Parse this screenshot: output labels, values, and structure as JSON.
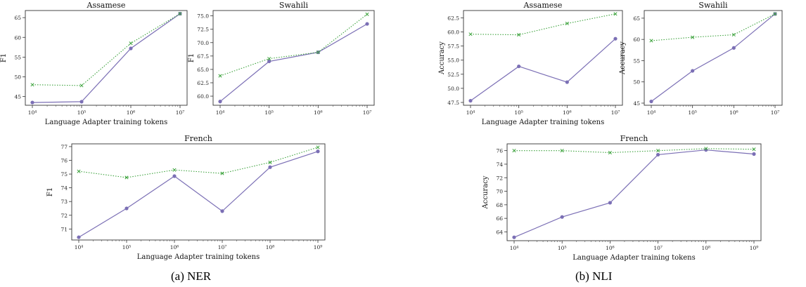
{
  "captions": {
    "a": "(a)  NER",
    "b": "(b)  NLI"
  },
  "colors": {
    "solid": "#7b6fb5",
    "dotted": "#3ea33e"
  },
  "chart_data": [
    {
      "id": "ner-assamese",
      "type": "line",
      "scale_x": "log",
      "title": "Assamese",
      "xlabel": "Language Adapter training tokens",
      "ylabel": "F1",
      "x": [
        10000,
        100000,
        1000000,
        10000000
      ],
      "xticks": [
        10000,
        100000,
        1000000,
        10000000
      ],
      "xtick_labels": [
        "10⁴",
        "10⁵",
        "10⁶",
        "10⁷"
      ],
      "yticks": [
        45,
        50,
        55,
        60,
        65
      ],
      "ylim": [
        42.8,
        66.8
      ],
      "series": [
        {
          "style": "solid",
          "values": [
            43.5,
            43.7,
            57.2,
            66.0
          ]
        },
        {
          "style": "dotted",
          "values": [
            48.0,
            47.8,
            58.5,
            66.0
          ]
        }
      ]
    },
    {
      "id": "ner-swahili",
      "type": "line",
      "scale_x": "log",
      "title": "Swahili",
      "xlabel": "",
      "ylabel": "F1",
      "x": [
        10000,
        100000,
        1000000,
        10000000
      ],
      "xticks": [
        10000,
        100000,
        1000000,
        10000000
      ],
      "xtick_labels": [
        "10⁴",
        "10⁵",
        "10⁶",
        "10⁷"
      ],
      "yticks": [
        60.0,
        62.5,
        65.0,
        67.5,
        70.0,
        72.5,
        75.0
      ],
      "ytick_labels": [
        "60.0",
        "62.5",
        "65.0",
        "67.5",
        "70.0",
        "72.5",
        "75.0"
      ],
      "ylim": [
        58.3,
        76.0
      ],
      "series": [
        {
          "style": "solid",
          "values": [
            59.0,
            66.5,
            68.2,
            73.5
          ]
        },
        {
          "style": "dotted",
          "values": [
            63.8,
            67.0,
            68.2,
            75.3
          ]
        }
      ]
    },
    {
      "id": "ner-french",
      "type": "line",
      "scale_x": "log",
      "title": "French",
      "xlabel": "Language Adapter training tokens",
      "ylabel": "F1",
      "x": [
        10000,
        100000,
        1000000,
        10000000,
        100000000,
        1000000000
      ],
      "xticks": [
        10000,
        100000,
        1000000,
        10000000,
        100000000,
        1000000000
      ],
      "xtick_labels": [
        "10⁴",
        "10⁵",
        "10⁶",
        "10⁷",
        "10⁸",
        "10⁹"
      ],
      "yticks": [
        71,
        72,
        73,
        74,
        75,
        76,
        77
      ],
      "ylim": [
        70.2,
        77.2
      ],
      "series": [
        {
          "style": "solid",
          "values": [
            70.4,
            72.5,
            74.85,
            72.3,
            75.5,
            76.65
          ]
        },
        {
          "style": "dotted",
          "values": [
            75.2,
            74.75,
            75.3,
            75.05,
            75.85,
            76.95
          ]
        }
      ]
    },
    {
      "id": "nli-assamese",
      "type": "line",
      "scale_x": "log",
      "title": "Assamese",
      "xlabel": "Language Adapter training tokens",
      "ylabel": "Accuracy",
      "x": [
        10000,
        100000,
        1000000,
        10000000
      ],
      "xticks": [
        10000,
        100000,
        1000000,
        10000000
      ],
      "xtick_labels": [
        "10⁴",
        "10⁵",
        "10⁶",
        "10⁷"
      ],
      "yticks": [
        47.5,
        50.0,
        52.5,
        55.0,
        57.5,
        60.0,
        62.5
      ],
      "ytick_labels": [
        "47.5",
        "50.0",
        "52.5",
        "55.0",
        "57.5",
        "60.0",
        "62.5"
      ],
      "ylim": [
        47.0,
        63.8
      ],
      "series": [
        {
          "style": "solid",
          "values": [
            47.8,
            53.9,
            51.1,
            58.8
          ]
        },
        {
          "style": "dotted",
          "values": [
            59.6,
            59.5,
            61.5,
            63.2
          ]
        }
      ]
    },
    {
      "id": "nli-swahili",
      "type": "line",
      "scale_x": "log",
      "title": "Swahili",
      "xlabel": "",
      "ylabel": "Accuracy",
      "x": [
        10000,
        100000,
        1000000,
        10000000
      ],
      "xticks": [
        10000,
        100000,
        1000000,
        10000000
      ],
      "xtick_labels": [
        "10⁴",
        "10⁵",
        "10⁶",
        "10⁷"
      ],
      "yticks": [
        45,
        50,
        55,
        60,
        65
      ],
      "ylim": [
        44.5,
        66.8
      ],
      "series": [
        {
          "style": "solid",
          "values": [
            45.4,
            52.6,
            58.0,
            66.0
          ]
        },
        {
          "style": "dotted",
          "values": [
            59.7,
            60.5,
            61.1,
            66.0
          ]
        }
      ]
    },
    {
      "id": "nli-french",
      "type": "line",
      "scale_x": "log",
      "title": "French",
      "xlabel": "Language Adapter training tokens",
      "ylabel": "Accuracy",
      "x": [
        10000,
        100000,
        1000000,
        10000000,
        100000000,
        1000000000
      ],
      "xticks": [
        10000,
        100000,
        1000000,
        10000000,
        100000000,
        1000000000
      ],
      "xtick_labels": [
        "10⁴",
        "10⁵",
        "10⁶",
        "10⁷",
        "10⁸",
        "10⁹"
      ],
      "yticks": [
        64,
        66,
        68,
        70,
        72,
        74,
        76
      ],
      "ylim": [
        62.7,
        77.0
      ],
      "series": [
        {
          "style": "solid",
          "values": [
            63.2,
            66.2,
            68.3,
            75.4,
            76.1,
            75.5
          ]
        },
        {
          "style": "dotted",
          "values": [
            76.0,
            76.0,
            75.7,
            76.0,
            76.3,
            76.2
          ]
        }
      ]
    }
  ]
}
